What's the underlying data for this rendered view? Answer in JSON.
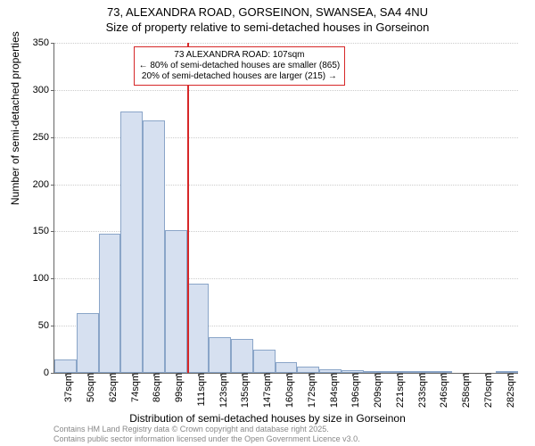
{
  "header": {
    "line1": "73, ALEXANDRA ROAD, GORSEINON, SWANSEA, SA4 4NU",
    "line2": "Size of property relative to semi-detached houses in Gorseinon"
  },
  "chart": {
    "type": "histogram",
    "ylabel": "Number of semi-detached properties",
    "xlabel": "Distribution of semi-detached houses by size in Gorseinon",
    "ylim": [
      0,
      350
    ],
    "ytick_step": 50,
    "yticks": [
      0,
      50,
      100,
      150,
      200,
      250,
      300,
      350
    ],
    "categories": [
      "37sqm",
      "50sqm",
      "62sqm",
      "74sqm",
      "86sqm",
      "99sqm",
      "111sqm",
      "123sqm",
      "135sqm",
      "147sqm",
      "160sqm",
      "172sqm",
      "184sqm",
      "196sqm",
      "209sqm",
      "221sqm",
      "233sqm",
      "246sqm",
      "258sqm",
      "270sqm",
      "282sqm"
    ],
    "values": [
      14,
      63,
      148,
      277,
      268,
      151,
      95,
      38,
      36,
      25,
      11,
      7,
      4,
      3,
      1,
      2,
      1,
      1,
      0,
      0,
      1
    ],
    "bar_fill": "#d6e0f0",
    "bar_border": "#8aa5c8",
    "grid_color": "#cccccc",
    "axis_color": "#666666",
    "background_color": "#ffffff",
    "label_fontsize": 12,
    "tick_fontsize": 11,
    "marker": {
      "index_after": 5,
      "color": "#d62728",
      "annotation": {
        "line1": "73 ALEXANDRA ROAD: 107sqm",
        "line2": "← 80% of semi-detached houses are smaller (865)",
        "line3": "20% of semi-detached houses are larger (215) →"
      }
    }
  },
  "footer": {
    "line1": "Contains HM Land Registry data © Crown copyright and database right 2025.",
    "line2": "Contains public sector information licensed under the Open Government Licence v3.0."
  }
}
